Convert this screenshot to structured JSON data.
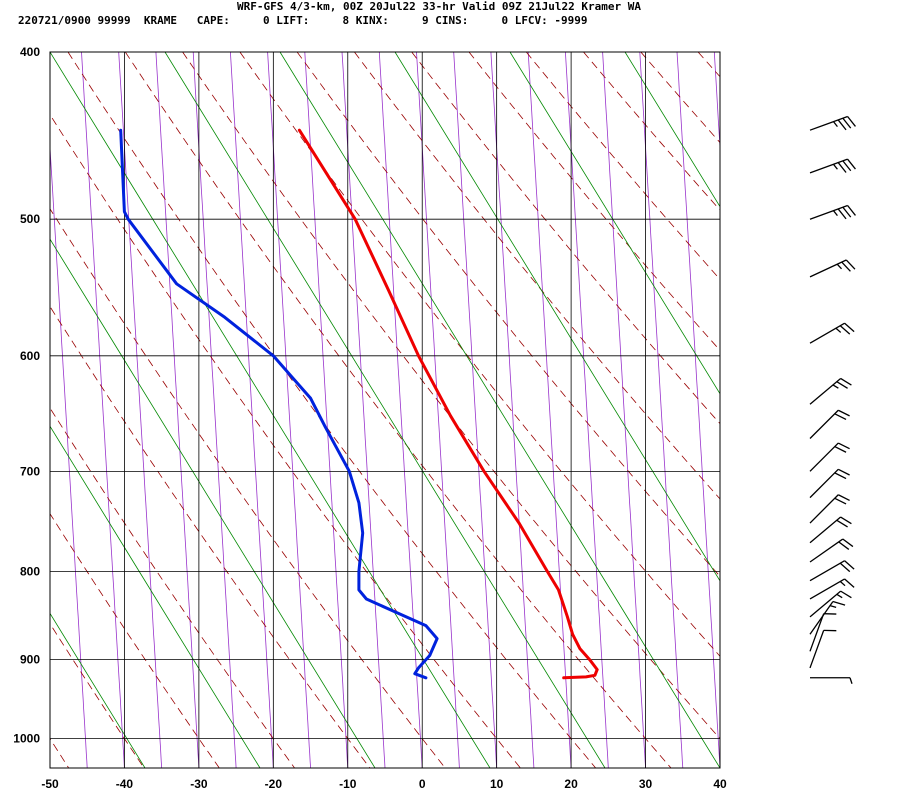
{
  "header": {
    "title": "WRF-GFS 4/3-km, 00Z 20Jul22 33-hr Valid 09Z 21Jul22 Kramer WA",
    "stats": "220721/0900 99999  KRAME   CAPE:     0 LIFT:     8 KINX:     9 CINS:     0 LFCV: -9999"
  },
  "chart_data": {
    "type": "line",
    "subtype": "skew-T log-p sounding",
    "title": "WRF-GFS 4/3-km, 00Z 20Jul22 33-hr Valid 09Z 21Jul22 Kramer WA",
    "xlabel": "",
    "ylabel": "",
    "x_ticks": [
      -50,
      -40,
      -30,
      -20,
      -10,
      0,
      10,
      20,
      30,
      40
    ],
    "y_ticks": [
      400,
      500,
      600,
      700,
      800,
      900,
      1000
    ],
    "xlim": [
      -50,
      40
    ],
    "ylim": [
      1040,
      400
    ],
    "y_scale": "log",
    "grid": true,
    "colors": {
      "temperature": "#ee0000",
      "dewpoint": "#0022dd",
      "dry_adiabat": "#990000",
      "moist_adiabat": "#008800",
      "isotherm_skew": "#9933cc",
      "grid": "#000000"
    },
    "series": [
      {
        "name": "temperature",
        "points": [
          {
            "p": 922,
            "t": 19.0
          },
          {
            "p": 921,
            "t": 22.0
          },
          {
            "p": 919,
            "t": 23.2
          },
          {
            "p": 912,
            "t": 23.5
          },
          {
            "p": 900,
            "t": 22.5
          },
          {
            "p": 887,
            "t": 21.2
          },
          {
            "p": 870,
            "t": 20.2
          },
          {
            "p": 850,
            "t": 19.5
          },
          {
            "p": 820,
            "t": 18.3
          },
          {
            "p": 800,
            "t": 16.8
          },
          {
            "p": 750,
            "t": 13.0
          },
          {
            "p": 700,
            "t": 8.3
          },
          {
            "p": 650,
            "t": 3.8
          },
          {
            "p": 600,
            "t": -0.5
          },
          {
            "p": 550,
            "t": -4.5
          },
          {
            "p": 500,
            "t": -9.0
          },
          {
            "p": 444,
            "t": -16.5
          }
        ]
      },
      {
        "name": "dewpoint",
        "points": [
          {
            "p": 922,
            "t": 0.5
          },
          {
            "p": 917,
            "t": -1.0
          },
          {
            "p": 910,
            "t": -0.5
          },
          {
            "p": 895,
            "t": 1.0
          },
          {
            "p": 875,
            "t": 2.0
          },
          {
            "p": 860,
            "t": 0.5
          },
          {
            "p": 845,
            "t": -3.5
          },
          {
            "p": 830,
            "t": -7.5
          },
          {
            "p": 820,
            "t": -8.5
          },
          {
            "p": 800,
            "t": -8.5
          },
          {
            "p": 760,
            "t": -8.0
          },
          {
            "p": 730,
            "t": -8.5
          },
          {
            "p": 700,
            "t": -9.8
          },
          {
            "p": 660,
            "t": -13.0
          },
          {
            "p": 635,
            "t": -15.0
          },
          {
            "p": 600,
            "t": -20.0
          },
          {
            "p": 570,
            "t": -26.5
          },
          {
            "p": 545,
            "t": -33.0
          },
          {
            "p": 500,
            "t": -39.5
          },
          {
            "p": 495,
            "t": -40.0
          },
          {
            "p": 444,
            "t": -40.5
          }
        ]
      }
    ],
    "wind_barbs": [
      {
        "p": 444,
        "direction_deg": 250,
        "speed_kt": 35
      },
      {
        "p": 470,
        "direction_deg": 250,
        "speed_kt": 35
      },
      {
        "p": 500,
        "direction_deg": 250,
        "speed_kt": 35
      },
      {
        "p": 540,
        "direction_deg": 245,
        "speed_kt": 25
      },
      {
        "p": 590,
        "direction_deg": 240,
        "speed_kt": 25
      },
      {
        "p": 640,
        "direction_deg": 230,
        "speed_kt": 25
      },
      {
        "p": 670,
        "direction_deg": 225,
        "speed_kt": 20
      },
      {
        "p": 700,
        "direction_deg": 225,
        "speed_kt": 20
      },
      {
        "p": 725,
        "direction_deg": 225,
        "speed_kt": 20
      },
      {
        "p": 750,
        "direction_deg": 225,
        "speed_kt": 20
      },
      {
        "p": 770,
        "direction_deg": 230,
        "speed_kt": 20
      },
      {
        "p": 790,
        "direction_deg": 235,
        "speed_kt": 20
      },
      {
        "p": 810,
        "direction_deg": 240,
        "speed_kt": 20
      },
      {
        "p": 830,
        "direction_deg": 240,
        "speed_kt": 15
      },
      {
        "p": 850,
        "direction_deg": 230,
        "speed_kt": 15
      },
      {
        "p": 870,
        "direction_deg": 215,
        "speed_kt": 15
      },
      {
        "p": 890,
        "direction_deg": 200,
        "speed_kt": 10
      },
      {
        "p": 910,
        "direction_deg": 200,
        "speed_kt": 10
      },
      {
        "p": 922,
        "direction_deg": 270,
        "speed_kt": 5
      }
    ]
  }
}
